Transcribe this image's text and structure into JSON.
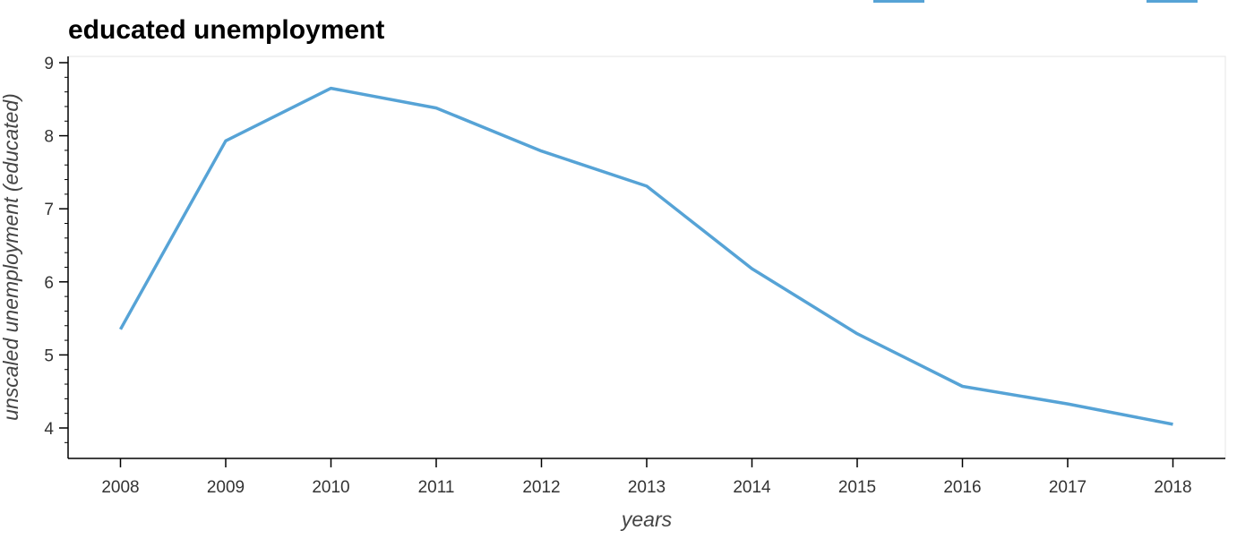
{
  "chart_data": {
    "type": "line",
    "title": "educated unemployment",
    "xlabel": "years",
    "ylabel": "unscaled unemployment (educated)",
    "x": [
      2008,
      2009,
      2010,
      2011,
      2012,
      2013,
      2014,
      2015,
      2016,
      2017,
      2018
    ],
    "series": [
      {
        "values": [
          5.35,
          7.93,
          8.65,
          8.38,
          7.79,
          7.31,
          6.18,
          5.29,
          4.57,
          4.33,
          4.05
        ],
        "color": "#56a3d6"
      }
    ],
    "xlim": [
      2007.5,
      2018.5
    ],
    "ylim": [
      3.6,
      9.1
    ],
    "xticks": [
      "2008",
      "2009",
      "2010",
      "2011",
      "2012",
      "2013",
      "2014",
      "2015",
      "2016",
      "2017",
      "2018"
    ],
    "yticks": [
      "4",
      "5",
      "6",
      "7",
      "8",
      "9"
    ],
    "grid": false,
    "legend": "none",
    "colors": {
      "line": "#56a3d6",
      "axis": "#000000",
      "frame": "#e5e5e5",
      "toolbar": "#56a3d6"
    }
  }
}
